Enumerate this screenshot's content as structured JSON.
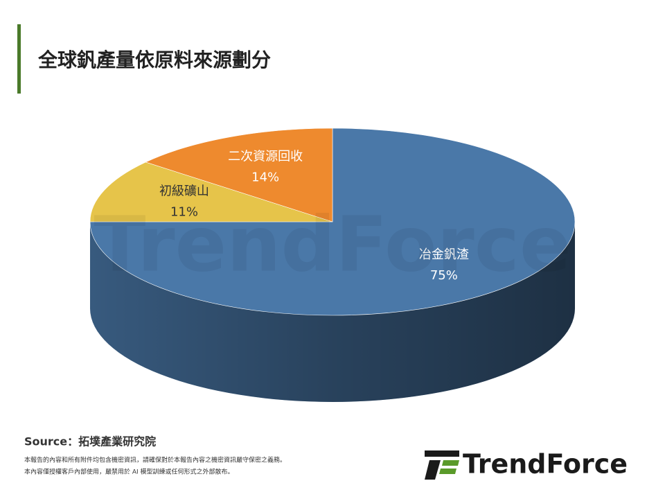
{
  "title": "全球釩產量依原料來源劃分",
  "chart_data": {
    "type": "pie",
    "categories": [
      "冶金釩渣",
      "初級礦山",
      "二次資源回收"
    ],
    "values": [
      75,
      11,
      14
    ],
    "value_labels": [
      "75%",
      "11%",
      "14%"
    ],
    "colors": [
      "#4a78a8",
      "#e6c44a",
      "#ee8a2e"
    ],
    "start_angle": 0,
    "direction": "clockwise",
    "three_d": true
  },
  "source": "Source：拓墣產業研究院",
  "disclaimer": [
    "本報告的內容和所有附件均包含機密資訊，請確保對於本報告內容之機密資訊嚴守保密之義務。",
    "本內容僅授權客戶內部使用，嚴禁用於 AI 模型訓練或任何形式之外部散布。"
  ],
  "logo": "TrendForce"
}
